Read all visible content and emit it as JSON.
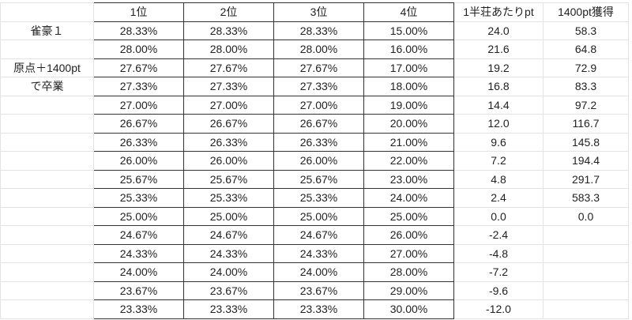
{
  "headers": [
    "1位",
    "2位",
    "3位",
    "4位",
    "1半荘あたりpt",
    "1400pt獲得"
  ],
  "left_labels": [
    "雀豪１",
    "",
    "原点＋1400pt",
    "で卒業",
    "",
    "",
    "",
    "",
    "",
    "",
    "",
    "",
    "",
    "",
    "",
    ""
  ],
  "rows": [
    [
      "28.33%",
      "28.33%",
      "28.33%",
      "15.00%",
      "24.0",
      "58.3"
    ],
    [
      "28.00%",
      "28.00%",
      "28.00%",
      "16.00%",
      "21.6",
      "64.8"
    ],
    [
      "27.67%",
      "27.67%",
      "27.67%",
      "17.00%",
      "19.2",
      "72.9"
    ],
    [
      "27.33%",
      "27.33%",
      "27.33%",
      "18.00%",
      "16.8",
      "83.3"
    ],
    [
      "27.00%",
      "27.00%",
      "27.00%",
      "19.00%",
      "14.4",
      "97.2"
    ],
    [
      "26.67%",
      "26.67%",
      "26.67%",
      "20.00%",
      "12.0",
      "116.7"
    ],
    [
      "26.33%",
      "26.33%",
      "26.33%",
      "21.00%",
      "9.6",
      "145.8"
    ],
    [
      "26.00%",
      "26.00%",
      "26.00%",
      "22.00%",
      "7.2",
      "194.4"
    ],
    [
      "25.67%",
      "25.67%",
      "25.67%",
      "23.00%",
      "4.8",
      "291.7"
    ],
    [
      "25.33%",
      "25.33%",
      "25.33%",
      "24.00%",
      "2.4",
      "583.3"
    ],
    [
      "25.00%",
      "25.00%",
      "25.00%",
      "25.00%",
      "0.0",
      "0.0"
    ],
    [
      "24.67%",
      "24.67%",
      "24.67%",
      "26.00%",
      "-2.4",
      ""
    ],
    [
      "24.33%",
      "24.33%",
      "24.33%",
      "27.00%",
      "-4.8",
      ""
    ],
    [
      "24.00%",
      "24.00%",
      "24.00%",
      "28.00%",
      "-7.2",
      ""
    ],
    [
      "23.67%",
      "23.67%",
      "23.67%",
      "29.00%",
      "-9.6",
      ""
    ],
    [
      "23.33%",
      "23.33%",
      "23.33%",
      "30.00%",
      "-12.0",
      ""
    ]
  ]
}
